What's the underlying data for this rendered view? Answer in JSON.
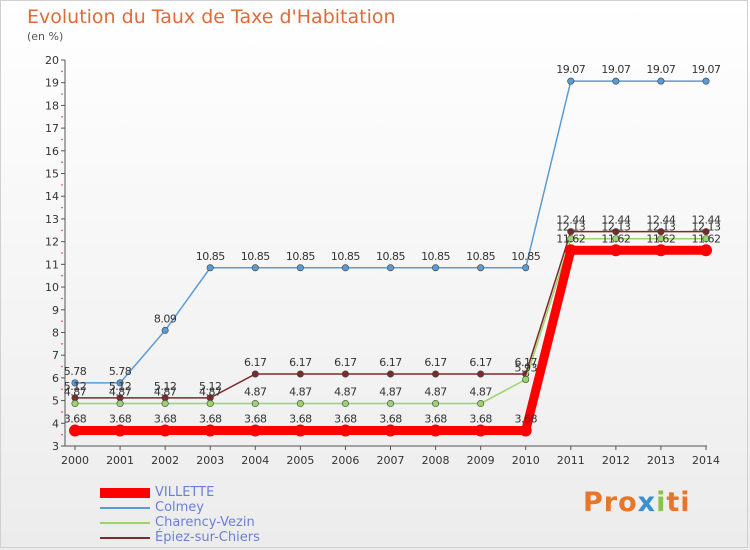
{
  "title": "Evolution du Taux de Taxe d'Habitation",
  "subtitle": "(en %)",
  "brand": "Proxiti",
  "chart_data": {
    "type": "line",
    "x": [
      "2000",
      "2001",
      "2002",
      "2003",
      "2004",
      "2005",
      "2006",
      "2007",
      "2008",
      "2009",
      "2010",
      "2011",
      "2012",
      "2013",
      "2014"
    ],
    "ylim": [
      3,
      20
    ],
    "yticks": [
      3,
      4,
      5,
      6,
      7,
      8,
      9,
      10,
      11,
      12,
      13,
      14,
      15,
      16,
      17,
      18,
      19,
      20
    ],
    "grid": false,
    "legend_position": "bottom-left",
    "series": [
      {
        "name": "VILLETTE",
        "color": "#ff0000",
        "values": [
          3.68,
          3.68,
          3.68,
          3.68,
          3.68,
          3.68,
          3.68,
          3.68,
          3.68,
          3.68,
          3.68,
          11.62,
          11.62,
          11.62,
          11.62
        ],
        "labels": [
          "3.68",
          "3.68",
          "3.68",
          "3.68",
          "3.68",
          "3.68",
          "3.68",
          "3.68",
          "3.68",
          "3.68",
          "3.68",
          "11.62",
          "11.62",
          "11.62",
          "11.62"
        ]
      },
      {
        "name": "Colmey",
        "color": "#5b9bd5",
        "values": [
          5.78,
          5.78,
          8.09,
          10.85,
          10.85,
          10.85,
          10.85,
          10.85,
          10.85,
          10.85,
          10.85,
          19.07,
          19.07,
          19.07,
          19.07
        ],
        "labels": [
          "5.78",
          "5.78",
          "8.09",
          "10.85",
          "10.85",
          "10.85",
          "10.85",
          "10.85",
          "10.85",
          "10.85",
          "10.85",
          "19.07",
          "19.07",
          "19.07",
          "19.07"
        ]
      },
      {
        "name": "Charency-Vezin",
        "color": "#9ad56a",
        "values": [
          4.87,
          4.87,
          4.87,
          4.87,
          4.87,
          4.87,
          4.87,
          4.87,
          4.87,
          4.87,
          5.93,
          12.13,
          12.13,
          12.13,
          12.13
        ],
        "labels": [
          "4.87",
          "4.87",
          "4.87",
          "4.87",
          "4.87",
          "4.87",
          "4.87",
          "4.87",
          "4.87",
          "4.87",
          "5.93",
          "12.13",
          "12.13",
          "12.13",
          "12.13"
        ]
      },
      {
        "name": "Épiez-sur-Chiers",
        "color": "#7a2b2b",
        "values": [
          5.12,
          5.12,
          5.12,
          5.12,
          6.17,
          6.17,
          6.17,
          6.17,
          6.17,
          6.17,
          6.17,
          12.44,
          12.44,
          12.44,
          12.44
        ],
        "labels": [
          "5.12",
          "5.12",
          "5.12",
          "5.12",
          "6.17",
          "6.17",
          "6.17",
          "6.17",
          "6.17",
          "6.17",
          "6.17",
          "12.44",
          "12.44",
          "12.44",
          "12.44"
        ]
      }
    ]
  }
}
